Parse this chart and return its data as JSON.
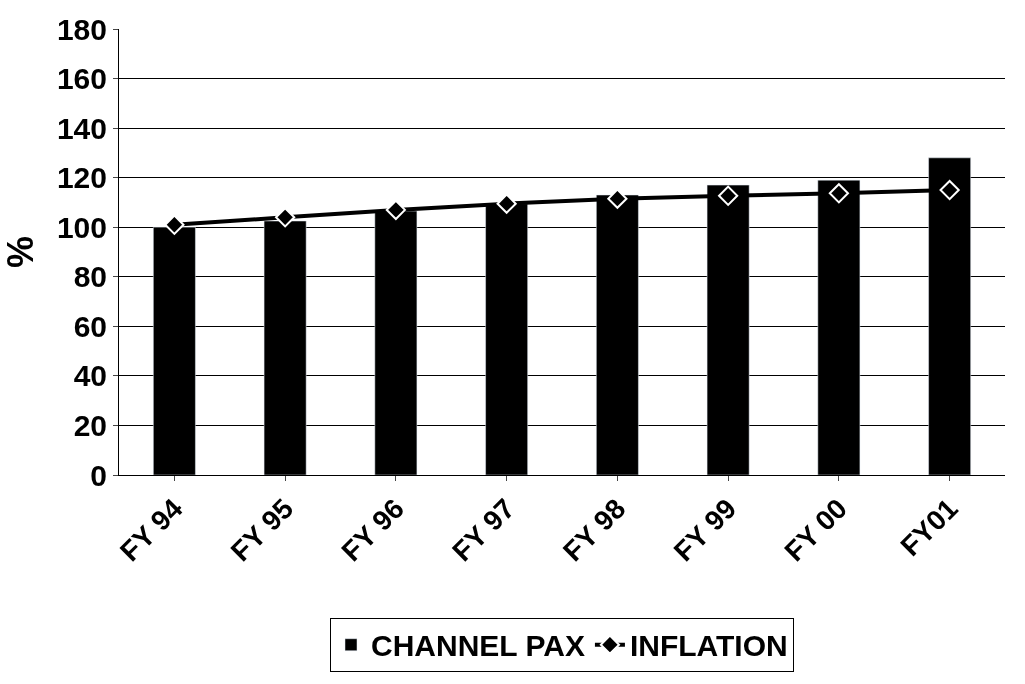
{
  "chart_data": {
    "type": "bar",
    "ylabel": "%",
    "categories": [
      "FY 94",
      "FY 95",
      "FY 96",
      "FY 97",
      "FY 98",
      "FY 99",
      "FY 00",
      "FY01"
    ],
    "series": [
      {
        "name": "CHANNEL PAX",
        "color": "#000000",
        "values": [
          100,
          102.5,
          106.5,
          109.5,
          113,
          117,
          119,
          128
        ]
      },
      {
        "name": "INFLATION",
        "type": "line",
        "color": "#000000",
        "marker": "diamond",
        "values": [
          101,
          104,
          107,
          109.5,
          111.5,
          112.7,
          113.7,
          115
        ]
      }
    ],
    "ylim": [
      0,
      180
    ],
    "yticks": [
      0,
      20,
      40,
      60,
      80,
      100,
      120,
      140,
      160,
      180
    ],
    "grid": "y",
    "legend": "bottom"
  }
}
